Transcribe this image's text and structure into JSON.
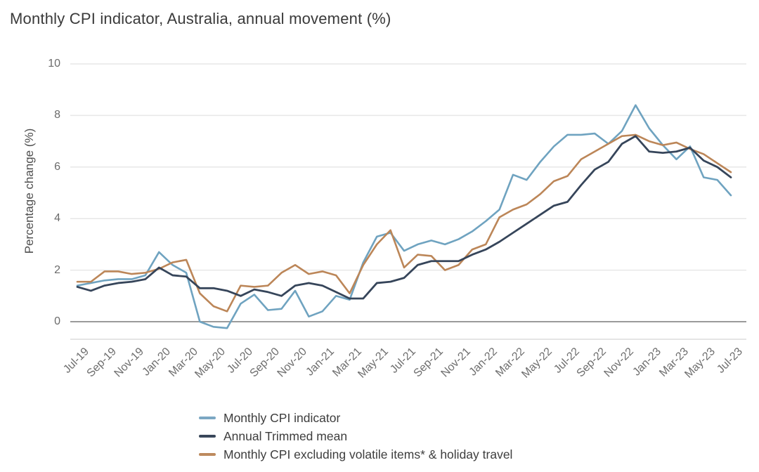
{
  "title": "Monthly CPI indicator, Australia, annual movement (%)",
  "y_axis": {
    "label": "Percentage change (%)",
    "ticks": [
      10,
      8,
      6,
      4,
      2,
      0
    ]
  },
  "x_axis": {
    "tick_labels": [
      "Jul-19",
      "Sep-19",
      "Nov-19",
      "Jan-20",
      "Mar-20",
      "May-20",
      "Jul-20",
      "Sep-20",
      "Nov-20",
      "Jan-21",
      "Mar-21",
      "May-21",
      "Jul-21",
      "Sep-21",
      "Nov-21",
      "Jan-22",
      "Mar-22",
      "May-22",
      "Jul-22",
      "Sep-22",
      "Nov-22",
      "Jan-23",
      "Mar-23",
      "May-23",
      "Jul-23"
    ]
  },
  "legend": {
    "items": [
      {
        "label": "Monthly CPI indicator",
        "color": "#7ba7c3"
      },
      {
        "label": "Annual Trimmed mean",
        "color": "#39475a"
      },
      {
        "label": "Monthly CPI excluding volatile items* & holiday travel",
        "color": "#bd8a5e"
      }
    ]
  },
  "chart_data": {
    "type": "line",
    "title": "Monthly CPI indicator, Australia, annual movement (%)",
    "xlabel": "",
    "ylabel": "Percentage change (%)",
    "ylim": [
      -0.6,
      10
    ],
    "grid": true,
    "legend_position": "bottom",
    "x": [
      "Jul-19",
      "Aug-19",
      "Sep-19",
      "Oct-19",
      "Nov-19",
      "Dec-19",
      "Jan-20",
      "Feb-20",
      "Mar-20",
      "Apr-20",
      "May-20",
      "Jun-20",
      "Jul-20",
      "Aug-20",
      "Sep-20",
      "Oct-20",
      "Nov-20",
      "Dec-20",
      "Jan-21",
      "Feb-21",
      "Mar-21",
      "Apr-21",
      "May-21",
      "Jun-21",
      "Jul-21",
      "Aug-21",
      "Sep-21",
      "Oct-21",
      "Nov-21",
      "Dec-21",
      "Jan-22",
      "Feb-22",
      "Mar-22",
      "Apr-22",
      "May-22",
      "Jun-22",
      "Jul-22",
      "Aug-22",
      "Sep-22",
      "Oct-22",
      "Nov-22",
      "Dec-22",
      "Jan-23",
      "Feb-23",
      "Mar-23",
      "Apr-23",
      "May-23",
      "Jun-23",
      "Jul-23"
    ],
    "series": [
      {
        "name": "Monthly CPI indicator",
        "color": "#6fa3c0",
        "values": [
          1.4,
          1.5,
          1.6,
          1.65,
          1.65,
          1.8,
          2.7,
          2.2,
          1.9,
          0.0,
          -0.2,
          -0.25,
          0.7,
          1.05,
          0.45,
          0.5,
          1.2,
          0.2,
          0.4,
          1.0,
          0.85,
          2.3,
          3.3,
          3.45,
          2.75,
          3.0,
          3.15,
          3.0,
          3.2,
          3.5,
          3.9,
          4.35,
          5.7,
          5.5,
          6.2,
          6.8,
          7.25,
          7.25,
          7.3,
          6.9,
          7.4,
          8.4,
          7.5,
          6.85,
          6.3,
          6.8,
          5.6,
          5.5,
          4.9
        ]
      },
      {
        "name": "Annual Trimmed mean",
        "color": "#36455a",
        "values": [
          1.35,
          1.2,
          1.4,
          1.5,
          1.55,
          1.65,
          2.1,
          1.8,
          1.75,
          1.3,
          1.3,
          1.2,
          1.0,
          1.25,
          1.15,
          1.0,
          1.4,
          1.5,
          1.4,
          1.15,
          0.9,
          0.9,
          1.5,
          1.55,
          1.7,
          2.2,
          2.35,
          2.35,
          2.35,
          2.6,
          2.8,
          3.1,
          3.45,
          3.8,
          4.15,
          4.5,
          4.65,
          5.3,
          5.9,
          6.2,
          6.9,
          7.2,
          6.6,
          6.55,
          6.6,
          6.75,
          6.25,
          6.0,
          5.6
        ]
      },
      {
        "name": "Monthly CPI excluding volatile items* & holiday travel",
        "color": "#bc8658",
        "values": [
          1.55,
          1.55,
          1.95,
          1.95,
          1.85,
          1.9,
          2.05,
          2.3,
          2.4,
          1.1,
          0.6,
          0.4,
          1.4,
          1.35,
          1.4,
          1.9,
          2.2,
          1.85,
          1.95,
          1.8,
          1.1,
          2.2,
          3.0,
          3.55,
          2.1,
          2.6,
          2.55,
          2.0,
          2.2,
          2.8,
          3.0,
          4.05,
          4.35,
          4.55,
          4.95,
          5.45,
          5.65,
          6.3,
          6.6,
          6.9,
          7.2,
          7.25,
          7.0,
          6.85,
          6.95,
          6.7,
          6.5,
          6.15,
          5.8
        ]
      }
    ]
  }
}
